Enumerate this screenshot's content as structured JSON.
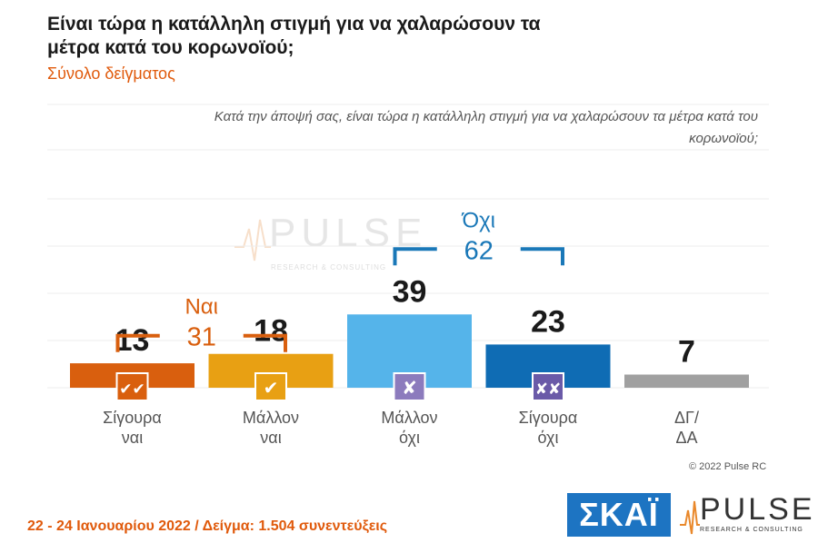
{
  "header": {
    "title": "Είναι τώρα η κατάλληλη στιγμή για να χαλαρώσουν τα μέτρα κατά του κορωνοϊού;",
    "subtitle": "Σύνολο δείγματος",
    "question": "Κατά την άποψή σας, είναι τώρα η κατάλληλη στιγμή για να χαλαρώσουν τα μέτρα κατά του κορωνοϊού;"
  },
  "chart_data": {
    "type": "bar",
    "categories": [
      [
        "Σίγουρα",
        "ναι"
      ],
      [
        "Μάλλον",
        "ναι"
      ],
      [
        "Μάλλον",
        "όχι"
      ],
      [
        "Σίγουρα",
        "όχι"
      ],
      [
        "ΔΓ/",
        "ΔΑ"
      ]
    ],
    "values": [
      13,
      18,
      39,
      23,
      7
    ],
    "colors": [
      "#d95f0e",
      "#e8a013",
      "#55b4ea",
      "#0f6cb4",
      "#a0a0a0"
    ],
    "badge_icons": [
      "double-check-icon",
      "check-icon",
      "cross-icon",
      "double-cross-icon",
      null
    ],
    "badge_symbols": [
      "✔✔",
      "✔",
      "✘",
      "✘✘",
      ""
    ],
    "badge_colors": [
      "#d95f0e",
      "#e8a013",
      "#8c7bbd",
      "#6a5aa8",
      null
    ],
    "ylim": [
      0,
      60
    ],
    "groups": [
      {
        "label": "Ναι",
        "value": 31,
        "color": "#d95f0e",
        "from": 0,
        "to": 1
      },
      {
        "label": "Όχι",
        "value": 62,
        "color": "#1a78b8",
        "from": 2,
        "to": 3
      }
    ]
  },
  "watermark": {
    "word": "PULSE",
    "sub": "RESEARCH & CONSULTING"
  },
  "copyright": "© 2022 Pulse RC",
  "footer": "22 - 24 Ιανουαρίου 2022 / Δείγμα: 1.504 συνεντεύξεις",
  "logos": {
    "skai": "ΣΚΑΪ",
    "pulse": "PULSE",
    "pulse_sub": "RESEARCH & CONSULTING"
  }
}
